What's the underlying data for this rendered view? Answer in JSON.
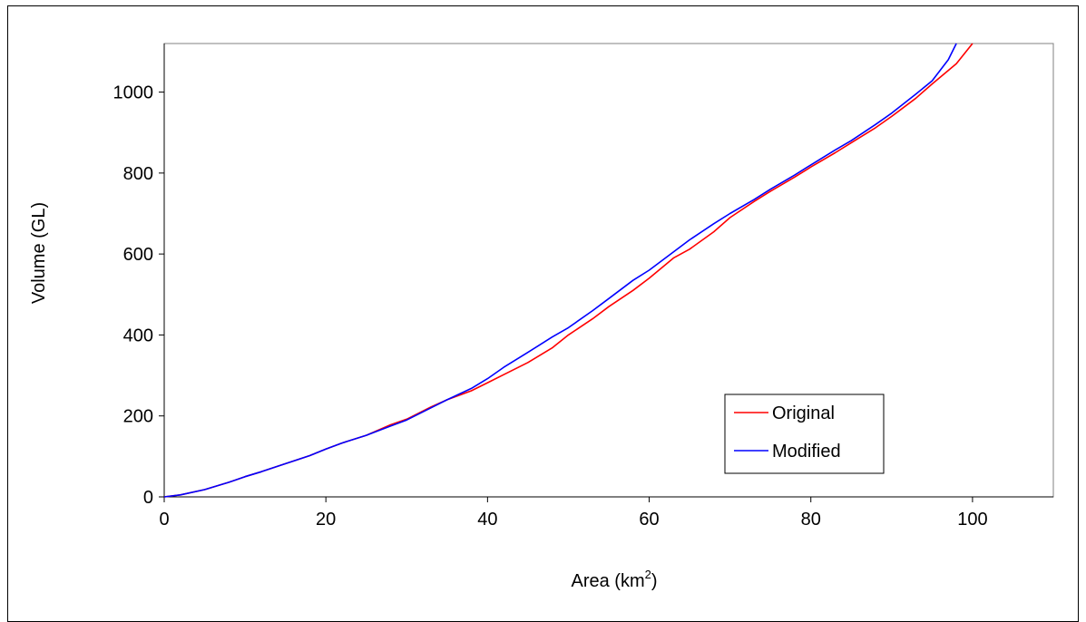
{
  "chart_data": {
    "type": "line",
    "title": "",
    "xlabel": "Area (km",
    "xlabel_sup": "2",
    "xlabel_suffix": ")",
    "ylabel": "Volume (GL)",
    "xlim": [
      0,
      110
    ],
    "ylim": [
      0,
      1120
    ],
    "xticks": [
      0,
      20,
      40,
      60,
      80,
      100
    ],
    "yticks": [
      0,
      200,
      400,
      600,
      800,
      1000
    ],
    "grid": false,
    "legend": "bottom-right",
    "series": [
      {
        "name": "Original",
        "color": "#ff0000",
        "x": [
          0,
          2,
          5,
          8,
          10,
          12,
          15,
          18,
          20,
          22,
          25,
          28,
          30,
          33,
          35,
          38,
          40,
          42,
          45,
          48,
          50,
          53,
          55,
          58,
          60,
          63,
          65,
          68,
          70,
          73,
          75,
          78,
          80,
          83,
          85,
          88,
          90,
          93,
          95,
          98,
          100
        ],
        "y": [
          0,
          5,
          18,
          36,
          50,
          62,
          82,
          102,
          118,
          133,
          152,
          178,
          192,
          222,
          240,
          262,
          282,
          302,
          332,
          368,
          400,
          440,
          470,
          510,
          540,
          590,
          612,
          655,
          690,
          730,
          755,
          790,
          815,
          850,
          875,
          912,
          940,
          985,
          1020,
          1070,
          1120
        ]
      },
      {
        "name": "Modified",
        "color": "#0000ff",
        "x": [
          0,
          2,
          5,
          8,
          10,
          12,
          15,
          18,
          20,
          22,
          25,
          28,
          30,
          33,
          35,
          38,
          40,
          42,
          45,
          48,
          50,
          53,
          55,
          58,
          60,
          63,
          65,
          68,
          70,
          73,
          75,
          78,
          80,
          83,
          85,
          88,
          90,
          93,
          95,
          97,
          98
        ],
        "y": [
          0,
          5,
          18,
          36,
          50,
          62,
          82,
          102,
          118,
          133,
          152,
          175,
          190,
          220,
          240,
          268,
          292,
          320,
          357,
          395,
          418,
          460,
          490,
          535,
          560,
          605,
          635,
          675,
          700,
          735,
          760,
          795,
          820,
          857,
          880,
          920,
          948,
          995,
          1028,
          1080,
          1120
        ]
      }
    ]
  }
}
